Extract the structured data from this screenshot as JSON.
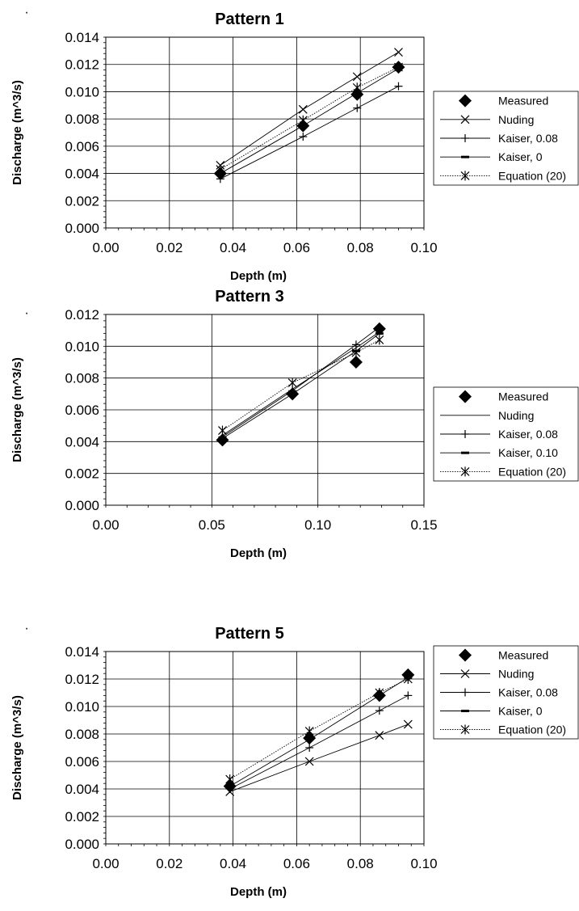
{
  "bullet": "·",
  "chart_data": [
    {
      "type": "line",
      "title": "Pattern 1",
      "xlabel": "Depth (m)",
      "ylabel": "Discharge (m^3/s)",
      "xlim": [
        0,
        0.1
      ],
      "ylim": [
        0,
        0.014
      ],
      "xticks": [
        "0.00",
        "0.02",
        "0.04",
        "0.06",
        "0.08",
        "0.10"
      ],
      "yticks": [
        "0.000",
        "0.002",
        "0.004",
        "0.006",
        "0.008",
        "0.010",
        "0.012",
        "0.014"
      ],
      "grid": true,
      "legend_position": "right",
      "series": [
        {
          "name": "Measured",
          "marker": "diamond",
          "line": "none",
          "x": [
            0.036,
            0.062,
            0.079,
            0.092
          ],
          "y": [
            0.004,
            0.0075,
            0.0098,
            0.0118
          ]
        },
        {
          "name": "Nuding",
          "marker": "x",
          "line": "solid",
          "x": [
            0.036,
            0.062,
            0.079,
            0.092
          ],
          "y": [
            0.0046,
            0.0087,
            0.0111,
            0.0129
          ]
        },
        {
          "name": "Kaiser, 0.08",
          "marker": "plus",
          "line": "solid",
          "x": [
            0.036,
            0.062,
            0.079,
            0.092
          ],
          "y": [
            0.0036,
            0.0067,
            0.0088,
            0.0104
          ]
        },
        {
          "name": "Kaiser, 0",
          "marker": "dash",
          "line": "solid",
          "x": [
            0.036,
            0.062,
            0.079,
            0.092
          ],
          "y": [
            0.004,
            0.0075,
            0.0099,
            0.0117
          ]
        },
        {
          "name": "Equation (20)",
          "marker": "asterisk",
          "line": "dotted",
          "x": [
            0.036,
            0.062,
            0.079,
            0.092
          ],
          "y": [
            0.0043,
            0.0079,
            0.0103,
            0.0118
          ]
        }
      ]
    },
    {
      "type": "line",
      "title": "Pattern 3",
      "xlabel": "Depth (m)",
      "ylabel": "Discharge (m^3/s)",
      "xlim": [
        0,
        0.15
      ],
      "ylim": [
        0,
        0.012
      ],
      "xticks": [
        "0.00",
        "0.05",
        "0.10",
        "0.15"
      ],
      "yticks": [
        "0.000",
        "0.002",
        "0.004",
        "0.006",
        "0.008",
        "0.010",
        "0.012"
      ],
      "grid": true,
      "legend_position": "right",
      "series": [
        {
          "name": "Measured",
          "marker": "diamond",
          "line": "none",
          "x": [
            0.055,
            0.088,
            0.118,
            0.129
          ],
          "y": [
            0.0041,
            0.007,
            0.009,
            0.0111
          ]
        },
        {
          "name": "Nuding",
          "marker": "none",
          "line": "solid",
          "x": [
            0.055,
            0.088,
            0.118,
            0.129
          ],
          "y": [
            0.0044,
            0.0073,
            0.0099,
            0.0109
          ]
        },
        {
          "name": "Kaiser, 0.08",
          "marker": "plus",
          "line": "solid",
          "x": [
            0.055,
            0.088,
            0.118,
            0.129
          ],
          "y": [
            0.0043,
            0.0072,
            0.0101,
            0.0112
          ]
        },
        {
          "name": "Kaiser, 0.10",
          "marker": "dash",
          "line": "solid",
          "x": [
            0.055,
            0.088,
            0.118,
            0.129
          ],
          "y": [
            0.0042,
            0.007,
            0.0097,
            0.0108
          ]
        },
        {
          "name": "Equation (20)",
          "marker": "asterisk",
          "line": "dotted",
          "x": [
            0.055,
            0.088,
            0.118,
            0.129
          ],
          "y": [
            0.0047,
            0.0077,
            0.0096,
            0.0104
          ]
        }
      ]
    },
    {
      "type": "line",
      "title": "Pattern 5",
      "xlabel": "Depth (m)",
      "ylabel": "Discharge (m^3/s)",
      "xlim": [
        0,
        0.1
      ],
      "ylim": [
        0,
        0.014
      ],
      "xticks": [
        "0.00",
        "0.02",
        "0.04",
        "0.06",
        "0.08",
        "0.10"
      ],
      "yticks": [
        "0.000",
        "0.002",
        "0.004",
        "0.006",
        "0.008",
        "0.010",
        "0.012",
        "0.014"
      ],
      "grid": true,
      "legend_position": "right",
      "series": [
        {
          "name": "Measured",
          "marker": "diamond",
          "line": "none",
          "x": [
            0.039,
            0.064,
            0.086,
            0.095
          ],
          "y": [
            0.0042,
            0.0077,
            0.0108,
            0.0123
          ]
        },
        {
          "name": "Nuding",
          "marker": "x",
          "line": "solid",
          "x": [
            0.039,
            0.064,
            0.086,
            0.095
          ],
          "y": [
            0.0038,
            0.006,
            0.0079,
            0.0087
          ]
        },
        {
          "name": "Kaiser, 0.08",
          "marker": "plus",
          "line": "solid",
          "x": [
            0.039,
            0.064,
            0.086,
            0.095
          ],
          "y": [
            0.004,
            0.007,
            0.0097,
            0.0108
          ]
        },
        {
          "name": "Kaiser, 0",
          "marker": "dash",
          "line": "solid",
          "x": [
            0.039,
            0.064,
            0.086,
            0.095
          ],
          "y": [
            0.0042,
            0.0076,
            0.0108,
            0.0121
          ]
        },
        {
          "name": "Equation (20)",
          "marker": "asterisk",
          "line": "dotted",
          "x": [
            0.039,
            0.064,
            0.086,
            0.095
          ],
          "y": [
            0.0047,
            0.0082,
            0.011,
            0.012
          ]
        }
      ]
    }
  ]
}
